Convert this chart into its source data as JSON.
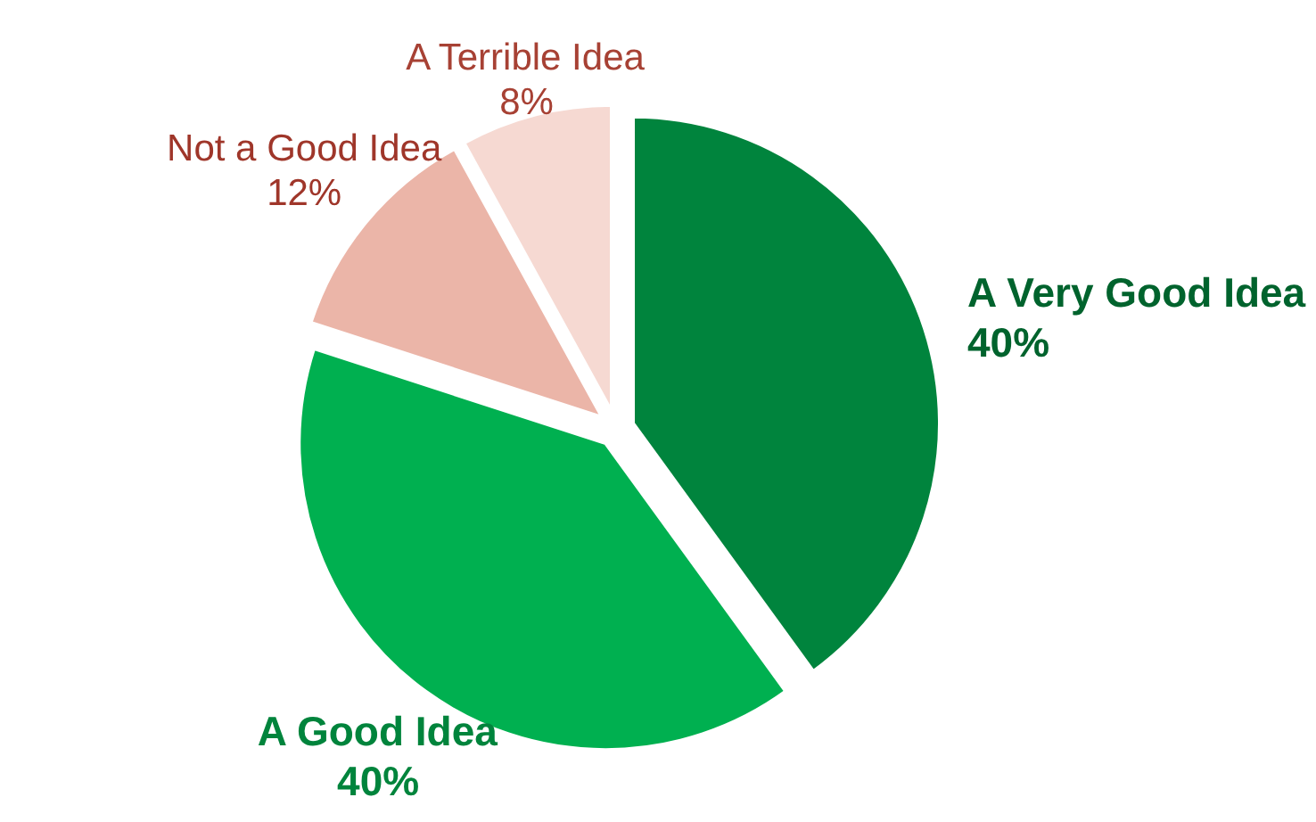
{
  "chart_data": {
    "type": "pie",
    "categories": [
      "A Very Good Idea",
      "A Good Idea",
      "Not a Good Idea",
      "A Terrible Idea"
    ],
    "values": [
      40,
      40,
      12,
      8
    ],
    "colors": [
      "#00843d",
      "#00b050",
      "#ebb5a8",
      "#f6d9d2"
    ],
    "value_labels": [
      "40%",
      "40%",
      "12%",
      "8%"
    ]
  }
}
